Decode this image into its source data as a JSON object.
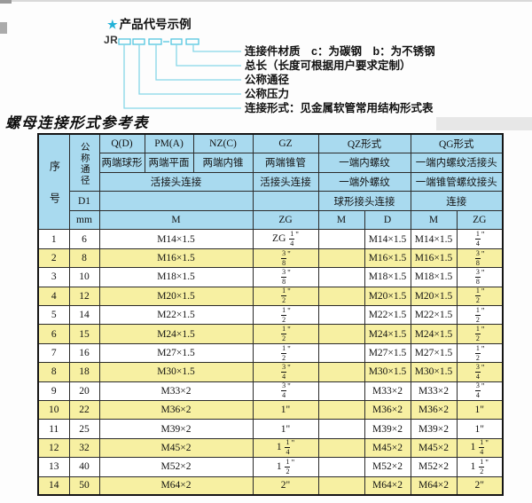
{
  "diagram": {
    "star": "★",
    "title": "产品代号示例",
    "prefix": "JR",
    "labels": [
      "连接件材质　c：为碳钢　b：为不锈钢",
      "总长（长度可根据用户要求定制）",
      "公称通径",
      "公称压力",
      "连接形式：见金属软管常用结构形式表"
    ]
  },
  "table_title": "螺母连接形式参考表",
  "table": {
    "header": {
      "col_index": "序号",
      "col_dn": "公称通径",
      "d1": "D1",
      "unit": "mm",
      "groups": {
        "q": "Q(D)",
        "pm": "PM(A)",
        "nz": "NZ(C)",
        "gz": "GZ",
        "qz": "QZ形式",
        "qg": "QG形式"
      },
      "row2": {
        "q": "两端球形",
        "pm": "两端平面",
        "nz": "两端内锥",
        "gz": "两端锥管",
        "qz": "一端内螺纹",
        "qg": "一端内螺纹活接头"
      },
      "row3": {
        "qpmnz": "活接头连接",
        "gz": "活接头连接",
        "qz": "一端外螺纹",
        "qg": "一端锥管螺纹接头"
      },
      "row4": {
        "qz": "球形接头连接",
        "qg": "连接"
      },
      "row5": {
        "m": "M",
        "zg": "ZG",
        "qz_m": "M",
        "qz_d": "D",
        "qg_m": "M",
        "qg_zg": "ZG"
      }
    },
    "rows": [
      [
        "1",
        "6",
        "M14×1.5",
        "ZG 1/4\"",
        "",
        "M14×1.5",
        "M14×1.5",
        "1/4\""
      ],
      [
        "2",
        "8",
        "M16×1.5",
        "3/8\"",
        "",
        "M16×1.5",
        "M16×1.5",
        "3/8\""
      ],
      [
        "3",
        "10",
        "M18×1.5",
        "3/8\"",
        "",
        "M18×1.5",
        "M18×1.5",
        "3/8\""
      ],
      [
        "4",
        "12",
        "M20×1.5",
        "1/2\"",
        "",
        "M20×1.5",
        "M20×1.5",
        "1/2\""
      ],
      [
        "5",
        "14",
        "M22×1.5",
        "1/2\"",
        "",
        "M22×1.5",
        "M22×1.5",
        "1/2\""
      ],
      [
        "6",
        "15",
        "M24×1.5",
        "1/2\"",
        "",
        "M24×1.5",
        "M24×1.5",
        "1/2\""
      ],
      [
        "7",
        "16",
        "M27×1.5",
        "1/2\"",
        "",
        "M27×1.5",
        "M27×1.5",
        "1/2\""
      ],
      [
        "8",
        "18",
        "M30×1.5",
        "3/4\"",
        "",
        "M30×1.5",
        "M30×1.5",
        "3/4\""
      ],
      [
        "9",
        "20",
        "M33×2",
        "3/4\"",
        "",
        "M33×2",
        "M33×2",
        "3/4\""
      ],
      [
        "10",
        "22",
        "M36×2",
        "1\"",
        "",
        "M36×2",
        "M36×2",
        "1\""
      ],
      [
        "11",
        "25",
        "M39×2",
        "1\"",
        "",
        "M39×2",
        "M39×2",
        "1\""
      ],
      [
        "12",
        "32",
        "M45×2",
        "1 1/4\"",
        "",
        "M45×2",
        "M45×2",
        "1 1/4\""
      ],
      [
        "13",
        "40",
        "M52×2",
        "1 1/2\"",
        "",
        "M52×2",
        "M52×2",
        "1 1/2\""
      ],
      [
        "14",
        "50",
        "M64×2",
        "2\"",
        "",
        "M64×2",
        "M64×2",
        "2\""
      ]
    ]
  },
  "colors": {
    "header_bg": "#a9daef",
    "alt_row_bg": "#f7f0a2",
    "diagram_cyan": "#53c6e0",
    "connector_cyan": "#86d7e8",
    "star_cyan": "#23b2d8"
  }
}
